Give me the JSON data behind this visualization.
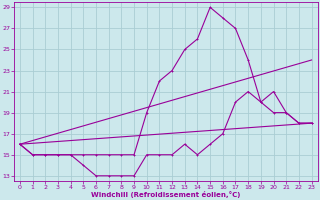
{
  "xlabel": "Windchill (Refroidissement éolien,°C)",
  "background_color": "#cce8ec",
  "grid_color": "#aacdd4",
  "line_color": "#990099",
  "xlim": [
    -0.5,
    23.5
  ],
  "ylim": [
    12.5,
    29.5
  ],
  "xticks": [
    0,
    1,
    2,
    3,
    4,
    5,
    6,
    7,
    8,
    9,
    10,
    11,
    12,
    13,
    14,
    15,
    16,
    17,
    18,
    19,
    20,
    21,
    22,
    23
  ],
  "yticks": [
    13,
    15,
    17,
    19,
    21,
    23,
    25,
    27,
    29
  ],
  "line1_x": [
    0,
    1,
    2,
    3,
    4,
    5,
    6,
    7,
    8,
    9,
    10,
    11,
    12,
    13,
    14,
    15,
    16,
    17,
    18,
    19,
    20,
    21,
    22,
    23
  ],
  "line1_y": [
    16,
    15,
    15,
    15,
    15,
    15,
    15,
    15,
    15,
    15,
    19,
    22,
    23,
    25,
    26,
    29,
    28,
    27,
    24,
    20,
    21,
    19,
    18,
    18
  ],
  "line2_x": [
    0,
    1,
    2,
    3,
    4,
    5,
    6,
    7,
    8,
    9,
    10,
    11,
    12,
    13,
    14,
    15,
    16,
    17,
    18,
    19,
    20,
    21,
    22,
    23
  ],
  "line2_y": [
    16,
    15,
    15,
    15,
    15,
    14,
    13,
    13,
    13,
    13,
    15,
    15,
    15,
    16,
    15,
    16,
    17,
    20,
    21,
    20,
    19,
    19,
    18,
    18
  ],
  "line3_x": [
    0,
    23
  ],
  "line3_y": [
    16,
    24
  ],
  "line4_x": [
    0,
    23
  ],
  "line4_y": [
    16,
    18
  ]
}
